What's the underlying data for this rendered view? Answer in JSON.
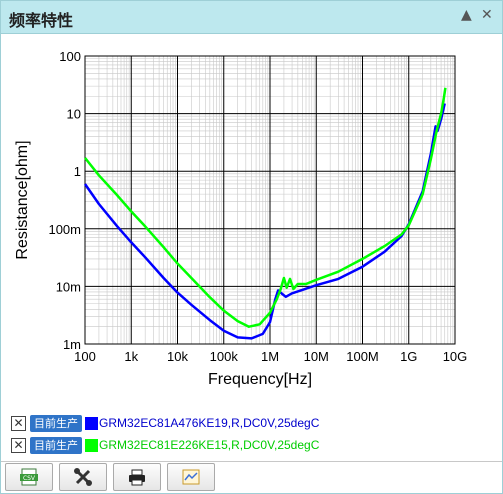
{
  "header": {
    "title": "频率特性",
    "collapse_icon": "▲",
    "close_icon": "✕"
  },
  "chart_data": {
    "type": "line",
    "xlabel": "Frequency[Hz]",
    "ylabel": "Resistance[ohm]",
    "x_scale": "log",
    "y_scale": "log",
    "xlim": [
      100,
      10000000000
    ],
    "ylim": [
      0.001,
      100
    ],
    "x_ticks": [
      {
        "v": 100,
        "label": "100"
      },
      {
        "v": 1000,
        "label": "1k"
      },
      {
        "v": 10000,
        "label": "10k"
      },
      {
        "v": 100000,
        "label": "100k"
      },
      {
        "v": 1000000,
        "label": "1M"
      },
      {
        "v": 10000000,
        "label": "10M"
      },
      {
        "v": 100000000,
        "label": "100M"
      },
      {
        "v": 1000000000,
        "label": "1G"
      },
      {
        "v": 10000000000,
        "label": "10G"
      }
    ],
    "y_ticks": [
      {
        "v": 100,
        "label": "100"
      },
      {
        "v": 10,
        "label": "10"
      },
      {
        "v": 1,
        "label": "1"
      },
      {
        "v": 0.1,
        "label": "100m"
      },
      {
        "v": 0.01,
        "label": "10m"
      },
      {
        "v": 0.001,
        "label": "1m"
      }
    ],
    "grid": true,
    "series": [
      {
        "name": "GRM32EC81A476KE19,R,DC0V,25degC",
        "color": "#0000ff",
        "points": [
          [
            100,
            0.6
          ],
          [
            200,
            0.27
          ],
          [
            500,
            0.11
          ],
          [
            1000,
            0.058
          ],
          [
            2000,
            0.032
          ],
          [
            5000,
            0.014
          ],
          [
            10000,
            0.0078
          ],
          [
            20000,
            0.0048
          ],
          [
            50000,
            0.0026
          ],
          [
            100000,
            0.0017
          ],
          [
            200000,
            0.0013
          ],
          [
            400000,
            0.00125
          ],
          [
            700000,
            0.0015
          ],
          [
            1000000,
            0.0024
          ],
          [
            1300000,
            0.006
          ],
          [
            1500000,
            0.0085
          ],
          [
            1800000,
            0.0075
          ],
          [
            2200000,
            0.0066
          ],
          [
            3000000,
            0.0076
          ],
          [
            5000000,
            0.0087
          ],
          [
            10000000,
            0.0105
          ],
          [
            30000000,
            0.0135
          ],
          [
            100000000,
            0.022
          ],
          [
            300000000,
            0.04
          ],
          [
            700000000,
            0.075
          ],
          [
            1000000000,
            0.12
          ],
          [
            2000000000,
            0.45
          ],
          [
            3000000000,
            2.0
          ],
          [
            3800000000,
            6.0
          ],
          [
            4200000000,
            5.0
          ],
          [
            5000000000,
            8.0
          ],
          [
            6000000000,
            15.0
          ]
        ]
      },
      {
        "name": "GRM32EC81E226KE15,R,DC0V,25degC",
        "color": "#00ff00",
        "points": [
          [
            100,
            1.7
          ],
          [
            200,
            0.85
          ],
          [
            500,
            0.38
          ],
          [
            1000,
            0.2
          ],
          [
            2000,
            0.11
          ],
          [
            5000,
            0.048
          ],
          [
            10000,
            0.025
          ],
          [
            20000,
            0.014
          ],
          [
            50000,
            0.0065
          ],
          [
            100000,
            0.0038
          ],
          [
            200000,
            0.0025
          ],
          [
            350000,
            0.002
          ],
          [
            600000,
            0.0022
          ],
          [
            1000000,
            0.0035
          ],
          [
            1400000,
            0.006
          ],
          [
            1700000,
            0.009
          ],
          [
            2000000,
            0.014
          ],
          [
            2300000,
            0.0095
          ],
          [
            2700000,
            0.0135
          ],
          [
            3200000,
            0.009
          ],
          [
            4000000,
            0.011
          ],
          [
            6000000,
            0.011
          ],
          [
            10000000,
            0.013
          ],
          [
            30000000,
            0.018
          ],
          [
            100000000,
            0.03
          ],
          [
            300000000,
            0.05
          ],
          [
            700000000,
            0.08
          ],
          [
            1000000000,
            0.115
          ],
          [
            2000000000,
            0.4
          ],
          [
            3000000000,
            1.6
          ],
          [
            4000000000,
            5.0
          ],
          [
            5000000000,
            10.0
          ],
          [
            5700000000,
            18.0
          ],
          [
            6200000000,
            28.0
          ]
        ]
      }
    ]
  },
  "legend": [
    {
      "checked": "✕",
      "tag": "目前生产",
      "text": "GRM32EC81A476KE19,R,DC0V,25degC",
      "color": "#0000ff",
      "text_color": "#0000cc"
    },
    {
      "checked": "✕",
      "tag": "目前生产",
      "text": "GRM32EC81E226KE15,R,DC0V,25degC",
      "color": "#00ff00",
      "text_color": "#00cc00"
    }
  ],
  "toolbar": {
    "buttons": [
      {
        "icon": "csv-export-icon",
        "label": "CSV"
      },
      {
        "icon": "tools-icon"
      },
      {
        "icon": "print-icon"
      },
      {
        "icon": "chart-image-icon"
      }
    ]
  }
}
